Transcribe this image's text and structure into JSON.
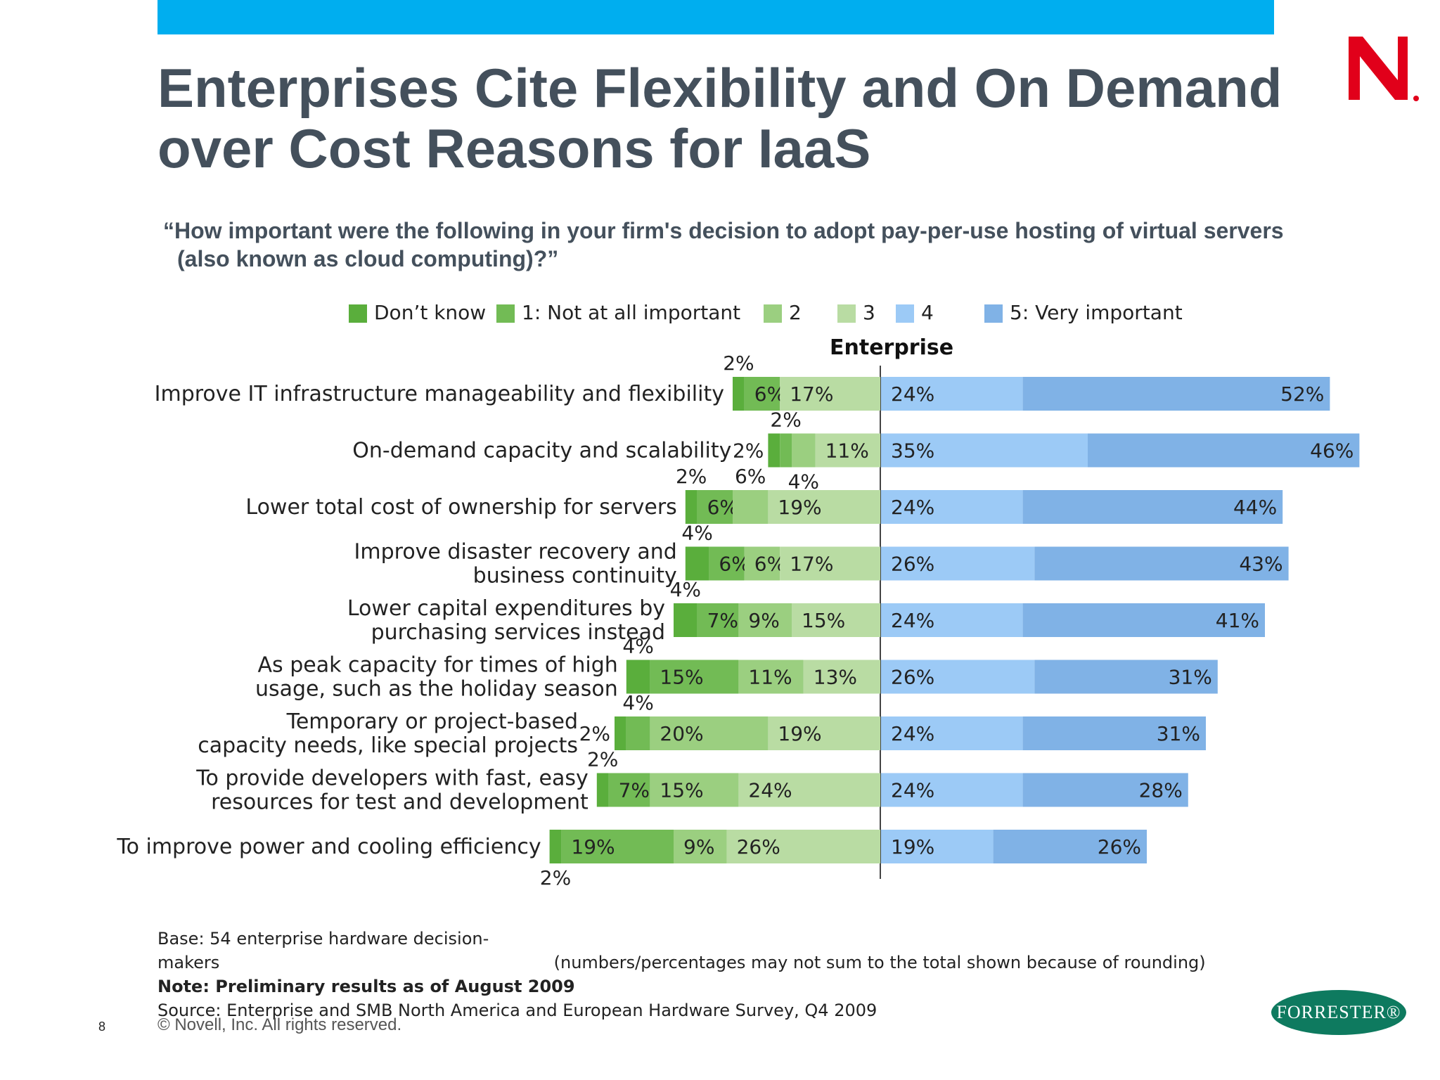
{
  "slide": {
    "title_line1": "Enterprises Cite Flexibility and On Demand",
    "title_line2": "over Cost Reasons for IaaS",
    "question_line1": "“How important were the following in your firm's decision to adopt pay-per-use hosting of virtual servers",
    "question_line2": "(also known as cloud computing)?”",
    "logo_icon": "novell-n-logo-icon",
    "logo_color": "#e1001a",
    "accent_bar_color": "#00aeef",
    "title_color": "#44505c",
    "footnote_base": "Base: 54 enterprise hardware decision-makers",
    "footnote_rounding": "(numbers/percentages may not sum to the total shown because of rounding)",
    "footnote_note": "Note: Preliminary results as of August 2009",
    "footnote_source": "Source: Enterprise and SMB North America and European Hardware Survey, Q4 2009",
    "page_number": "8",
    "copyright": "©  Novell, Inc.  All rights reserved.",
    "forrester_logo": "FORRESTER®",
    "forrester_color": "#0e7a5f"
  },
  "chart_data": {
    "type": "bar",
    "stacked": true,
    "diverging": true,
    "orientation": "horizontal",
    "title": "Enterprise",
    "legend_position": "top",
    "legend": [
      "Don’t know",
      "1: Not at all important",
      "2",
      "3",
      "4",
      "5: Very important"
    ],
    "series_colors": [
      "#5aae3c",
      "#72bb55",
      "#9bcf80",
      "#b9dca3",
      "#9ccaf6",
      "#80b2e6"
    ],
    "categories": [
      "Improve IT infrastructure manageability and flexibility",
      "On-demand capacity and scalability",
      "Lower total cost of ownership for servers",
      "Improve disaster recovery and business continuity",
      "Lower capital expenditures by purchasing services instead",
      "As peak capacity for times of high usage, such as the holiday season",
      "Temporary or project-based capacity needs, like special projects",
      "To provide developers with fast, easy resources for test and development",
      "To improve power and cooling efficiency"
    ],
    "category_lines": [
      [
        "Improve IT infrastructure manageability and flexibility"
      ],
      [
        "On-demand capacity and scalability"
      ],
      [
        "Lower total cost of ownership for servers"
      ],
      [
        "Improve disaster recovery and",
        "business continuity"
      ],
      [
        "Lower capital expenditures by",
        "purchasing services instead"
      ],
      [
        "As peak capacity for times of high",
        "usage, such as the holiday season"
      ],
      [
        "Temporary or project-based",
        "capacity needs, like special projects"
      ],
      [
        "To provide developers with fast, easy",
        "resources for test and development"
      ],
      [
        "To improve power and cooling efficiency"
      ]
    ],
    "series": [
      {
        "name": "Don’t know",
        "values": [
          2,
          2,
          2,
          4,
          4,
          4,
          2,
          2,
          2
        ]
      },
      {
        "name": "1: Not at all important",
        "values": [
          6,
          2,
          6,
          6,
          7,
          15,
          4,
          7,
          19
        ]
      },
      {
        "name": "2",
        "values": [
          0,
          4,
          6,
          6,
          9,
          11,
          20,
          15,
          9
        ]
      },
      {
        "name": "3",
        "values": [
          17,
          11,
          19,
          17,
          15,
          13,
          19,
          24,
          26
        ]
      },
      {
        "name": "4",
        "values": [
          24,
          35,
          24,
          26,
          24,
          26,
          24,
          24,
          19
        ]
      },
      {
        "name": "5: Very important",
        "values": [
          52,
          46,
          44,
          43,
          41,
          31,
          31,
          28,
          26
        ]
      }
    ]
  }
}
